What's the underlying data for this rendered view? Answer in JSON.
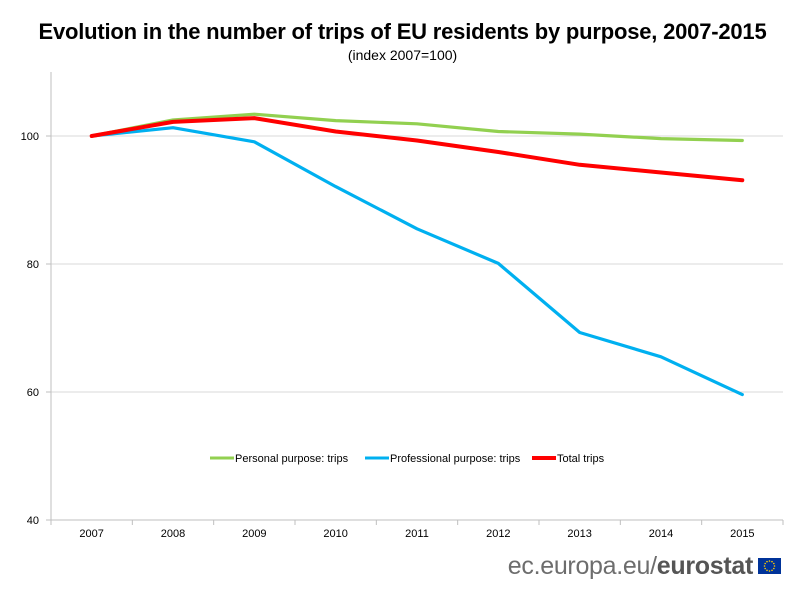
{
  "chart_data": {
    "type": "line",
    "title": "Evolution in the number of trips of EU residents by purpose, 2007-2015",
    "subtitle": "(index 2007=100)",
    "xlabel": "",
    "ylabel": "",
    "categories": [
      "2007",
      "2008",
      "2009",
      "2010",
      "2011",
      "2012",
      "2013",
      "2014",
      "2015"
    ],
    "ylim": [
      40,
      110
    ],
    "yticks": [
      40,
      60,
      80,
      100
    ],
    "grid": "horizontal",
    "legend_position": "bottom-center-inside",
    "series": [
      {
        "name": "Personal purpose: trips",
        "color": "#92d050",
        "values": [
          100,
          102.5,
          103.4,
          102.4,
          101.9,
          100.7,
          100.3,
          99.6,
          99.3
        ]
      },
      {
        "name": "Professional purpose: trips",
        "color": "#00b0f0",
        "values": [
          100,
          101.3,
          99.1,
          92.1,
          85.5,
          80.1,
          69.3,
          65.5,
          59.6
        ]
      },
      {
        "name": "Total trips",
        "color": "#ff0000",
        "values": [
          100,
          102.2,
          102.8,
          100.7,
          99.3,
          97.5,
          95.5,
          94.3,
          93.1
        ]
      }
    ]
  },
  "footer": {
    "source_prefix": "ec.europa.eu/",
    "source_brand": "eurostat",
    "logo_icon": "eu-flag-icon"
  }
}
